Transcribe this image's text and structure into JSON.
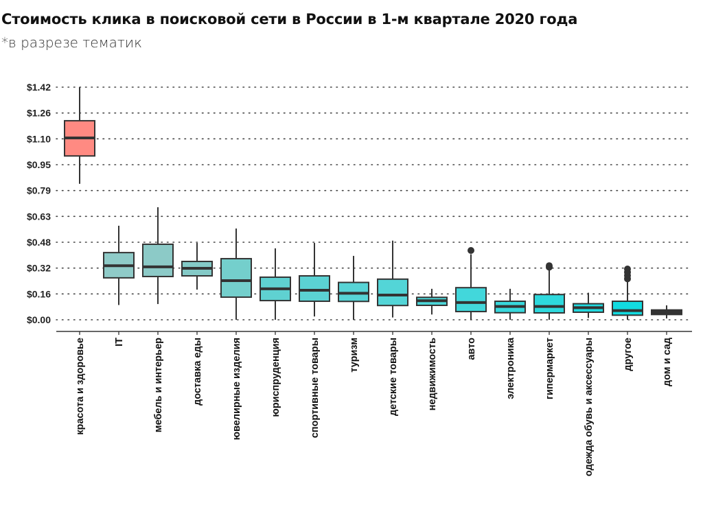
{
  "chart_data": {
    "type": "boxplot",
    "title": "Стоимость клика в поисковой сети в России в 1-м квартале 2020 года",
    "subtitle": "*в разрезе тематик",
    "xlabel": "",
    "ylabel": "",
    "ylim": [
      0,
      1.42
    ],
    "y_ticks": [
      "$0.00",
      "$0.16",
      "$0.32",
      "$0.48",
      "$0.63",
      "$0.79",
      "$0.95",
      "$1.10",
      "$1.26",
      "$1.42"
    ],
    "grid": "horizontal dotted",
    "legend": "none",
    "categories": [
      "красота и здоровье",
      "IT",
      "мебель и интерьер",
      "доставка еды",
      "ювелирные изделия",
      "юриспруденция",
      "спортивные товары",
      "туризм",
      "детские товары",
      "недвижимость",
      "авто",
      "электроника",
      "гипермаркет",
      "одежда обувь и аксессуары",
      "другое",
      "дом и сад"
    ],
    "boxes": [
      {
        "min": 0.83,
        "q1": 1.0,
        "median": 1.11,
        "q3": 1.215,
        "max": 1.42,
        "outliers": [],
        "color": "#ff8a82"
      },
      {
        "min": 0.09,
        "q1": 0.256,
        "median": 0.33,
        "q3": 0.41,
        "max": 0.574,
        "outliers": [],
        "color": "#8fcbc8"
      },
      {
        "min": 0.096,
        "q1": 0.264,
        "median": 0.323,
        "q3": 0.461,
        "max": 0.687,
        "outliers": [],
        "color": "#8ccac7"
      },
      {
        "min": 0.184,
        "q1": 0.268,
        "median": 0.314,
        "q3": 0.356,
        "max": 0.469,
        "outliers": [],
        "color": "#84cac7"
      },
      {
        "min": 0.0,
        "q1": 0.138,
        "median": 0.239,
        "q3": 0.373,
        "max": 0.557,
        "outliers": [],
        "color": "#74cfcc"
      },
      {
        "min": 0.0,
        "q1": 0.117,
        "median": 0.189,
        "q3": 0.26,
        "max": 0.436,
        "outliers": [],
        "color": "#5fd1d1"
      },
      {
        "min": 0.02,
        "q1": 0.113,
        "median": 0.18,
        "q3": 0.268,
        "max": 0.469,
        "outliers": [],
        "color": "#5bd2d3"
      },
      {
        "min": 0.0,
        "q1": 0.112,
        "median": 0.162,
        "q3": 0.228,
        "max": 0.39,
        "outliers": [],
        "color": "#57d4d6"
      },
      {
        "min": 0.014,
        "q1": 0.087,
        "median": 0.151,
        "q3": 0.248,
        "max": 0.483,
        "outliers": [],
        "color": "#53d5d7"
      },
      {
        "min": 0.032,
        "q1": 0.088,
        "median": 0.116,
        "q3": 0.137,
        "max": 0.189,
        "outliers": [],
        "color": "#4cd6d8"
      },
      {
        "min": 0.0,
        "q1": 0.05,
        "median": 0.105,
        "q3": 0.196,
        "max": 0.4,
        "outliers": [
          0.423
        ],
        "color": "#42d7db"
      },
      {
        "min": 0.0,
        "q1": 0.043,
        "median": 0.081,
        "q3": 0.113,
        "max": 0.189,
        "outliers": [],
        "color": "#38d8dc"
      },
      {
        "min": 0.0,
        "q1": 0.042,
        "median": 0.081,
        "q3": 0.154,
        "max": 0.31,
        "outliers": [
          0.321,
          0.33
        ],
        "color": "#2ed9dd"
      },
      {
        "min": 0.011,
        "q1": 0.046,
        "median": 0.074,
        "q3": 0.098,
        "max": 0.165,
        "outliers": [],
        "color": "#22dadf"
      },
      {
        "min": 0.0,
        "q1": 0.028,
        "median": 0.056,
        "q3": 0.113,
        "max": 0.235,
        "outliers": [
          0.25,
          0.27,
          0.29,
          0.31
        ],
        "color": "#12dbe0"
      },
      {
        "min": 0.008,
        "q1": 0.032,
        "median": 0.046,
        "q3": 0.06,
        "max": 0.088,
        "outliers": [],
        "color": "#333333"
      }
    ]
  }
}
